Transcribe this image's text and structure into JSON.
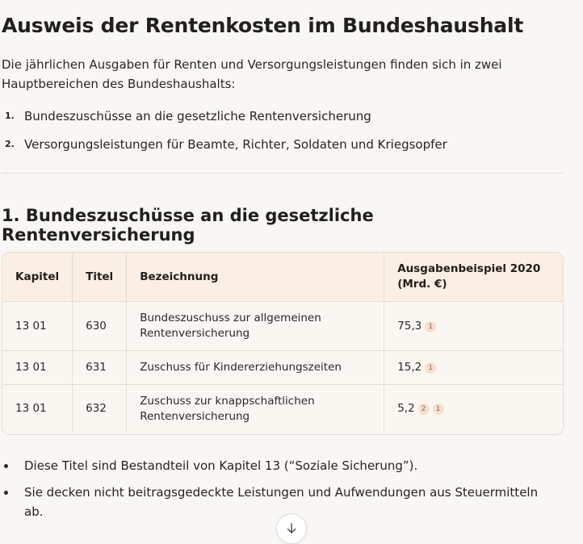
{
  "title": "Ausweis der Rentenkosten im Bundeshaushalt",
  "intro": "Die jährlichen Ausgaben für Renten und Versorgungsleistungen finden sich in zwei Hauptbereichen des Bundeshaushalts:",
  "toc": [
    {
      "num": "1.",
      "label": "Bundeszuschüsse an die gesetzliche Rentenversicherung"
    },
    {
      "num": "2.",
      "label": "Versorgungsleistungen für Beamte, Richter, Soldaten und Kriegsopfer"
    }
  ],
  "section1": {
    "heading": "1. Bundeszuschüsse an die gesetzliche Rentenversicherung",
    "table": {
      "headers": [
        "Kapitel",
        "Titel",
        "Bezeichnung",
        "Ausgabenbeispiel 2020 (Mrd. €)"
      ],
      "rows": [
        {
          "kapitel": "13 01",
          "titel": "630",
          "bezeichnung": "Bundeszuschuss zur allgemeinen Rentenversicherung",
          "betrag": "75,3",
          "refs": [
            "1"
          ]
        },
        {
          "kapitel": "13 01",
          "titel": "631",
          "bezeichnung": "Zuschuss für Kindererziehungszeiten",
          "betrag": "15,2",
          "refs": [
            "1"
          ]
        },
        {
          "kapitel": "13 01",
          "titel": "632",
          "bezeichnung": "Zuschuss zur knappschaftlichen Rentenversicherung",
          "betrag": "5,2",
          "refs": [
            "2",
            "1"
          ]
        }
      ]
    },
    "notes": [
      "Diese Titel sind Bestandteil von Kapitel 13 (“Soziale Sicherung”).",
      "Sie decken nicht beitragsgedeckte Leistungen und Aufwendungen aus Steuermitteln ab."
    ]
  },
  "scroll_button_icon": "arrow-down-icon"
}
